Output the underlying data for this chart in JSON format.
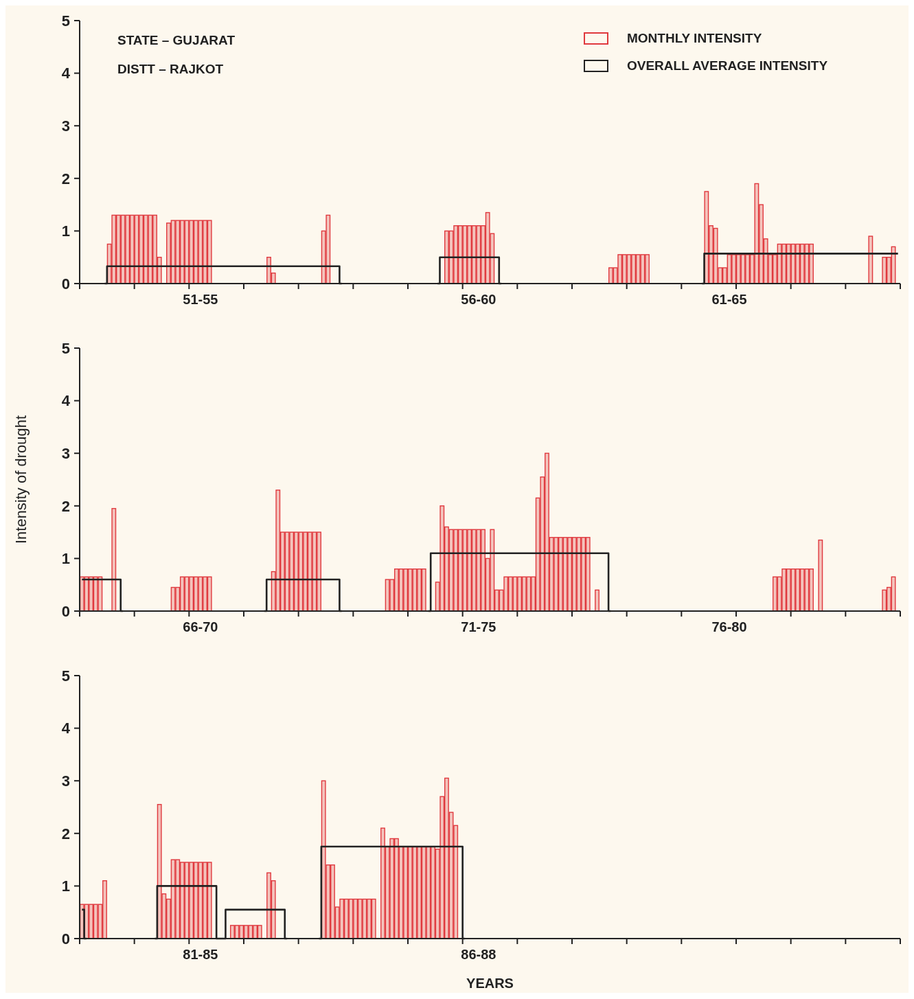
{
  "chart_data": [
    {
      "type": "bar",
      "annotations": [
        "STATE – GUJARAT",
        "DISTT – RAJKOT"
      ],
      "legend": "top right",
      "ylim": [
        0,
        5
      ],
      "yticks": [
        0,
        1,
        2,
        3,
        4,
        5
      ],
      "categories": [
        null,
        null,
        null,
        null,
        null,
        null,
        null,
        null,
        null,
        null,
        null,
        null,
        null,
        null,
        null,
        null,
        null,
        null,
        null,
        null,
        null,
        null,
        null,
        null,
        null,
        null,
        "51-55",
        null,
        null,
        null,
        null,
        null,
        null,
        null,
        null,
        null,
        null,
        null,
        null,
        null,
        null,
        null,
        null,
        null,
        null,
        null,
        null,
        null,
        null,
        null,
        null,
        null,
        null,
        null,
        null,
        null,
        null,
        null,
        null,
        null,
        null,
        null,
        null,
        null,
        null,
        null,
        null,
        null,
        null,
        null,
        null,
        null,
        null,
        null,
        null,
        null,
        null,
        null,
        null,
        null,
        null,
        null,
        null,
        null,
        null,
        null,
        null,
        "56-60",
        null,
        null,
        null,
        null,
        null,
        null,
        null,
        null,
        null,
        null,
        null,
        null,
        null,
        null,
        null,
        null,
        null,
        null,
        null,
        null,
        null,
        null,
        null,
        null,
        null,
        null,
        null,
        null,
        null,
        null,
        null,
        null,
        null,
        null,
        null,
        null,
        null,
        null,
        null,
        null,
        null,
        null,
        null,
        null,
        null,
        null,
        null,
        null,
        null,
        null,
        null,
        null,
        null,
        null,
        "61-65",
        null,
        null,
        null,
        null,
        null,
        null,
        null,
        null,
        null,
        null,
        null,
        null,
        null,
        null,
        null,
        null,
        null,
        null,
        null,
        null,
        null,
        null,
        null,
        null,
        null,
        null,
        null,
        null,
        null,
        null,
        null,
        null,
        null,
        null,
        null,
        null,
        null
      ],
      "series": [
        {
          "name": "MONTHLY INTENSITY",
          "color": "#e0393e",
          "values": [
            null,
            null,
            null,
            null,
            null,
            null,
            0.75,
            1.3,
            1.3,
            1.3,
            1.3,
            1.3,
            1.3,
            1.3,
            1.3,
            1.3,
            1.3,
            0.5,
            null,
            1.15,
            1.2,
            1.2,
            1.2,
            1.2,
            1.2,
            1.2,
            1.2,
            1.2,
            1.2,
            null,
            null,
            null,
            null,
            null,
            null,
            null,
            null,
            null,
            null,
            null,
            null,
            0.5,
            0.2,
            null,
            null,
            null,
            null,
            null,
            null,
            null,
            null,
            null,
            null,
            1.0,
            1.3,
            null,
            null,
            null,
            null,
            null,
            null,
            null,
            null,
            null,
            null,
            null,
            null,
            null,
            null,
            null,
            null,
            null,
            null,
            null,
            null,
            null,
            null,
            null,
            null,
            null,
            1.0,
            1.0,
            1.1,
            1.1,
            1.1,
            1.1,
            1.1,
            1.1,
            1.1,
            1.35,
            0.95,
            null,
            null,
            null,
            null,
            null,
            null,
            null,
            null,
            null,
            null,
            null,
            null,
            null,
            null,
            null,
            null,
            null,
            null,
            null,
            null,
            null,
            null,
            null,
            null,
            null,
            0.3,
            0.3,
            0.55,
            0.55,
            0.55,
            0.55,
            0.55,
            0.55,
            0.55,
            null,
            null,
            null,
            null,
            null,
            null,
            null,
            null,
            null,
            null,
            null,
            null,
            1.75,
            1.1,
            1.05,
            0.3,
            0.3,
            0.55,
            0.55,
            0.55,
            0.55,
            0.55,
            0.55,
            1.9,
            1.5,
            0.85,
            0.55,
            0.55,
            0.75,
            0.75,
            0.75,
            0.75,
            0.75,
            0.75,
            0.75,
            0.75,
            null,
            null,
            null,
            null,
            null,
            null,
            null,
            null,
            null,
            null,
            null,
            null,
            0.9,
            null,
            null,
            0.5,
            0.5,
            0.7,
            null
          ]
        },
        {
          "name": "OVERALL AVERAGE INTENSITY",
          "type": "step",
          "color": "#222222",
          "values": [
            null,
            null,
            null,
            null,
            null,
            0,
            0.33,
            0.33,
            0.33,
            0.33,
            0.33,
            0.33,
            0.33,
            0.33,
            0.33,
            0.33,
            0.33,
            0.33,
            0.33,
            0.33,
            0.33,
            0.33,
            0.33,
            0.33,
            0.33,
            0.33,
            0.33,
            0.33,
            0.33,
            0.33,
            0.33,
            0.33,
            0.33,
            0.33,
            0.33,
            0.33,
            0.33,
            0.33,
            0.33,
            0.33,
            0.33,
            0.33,
            0.33,
            0.33,
            0.33,
            0.33,
            0.33,
            0.33,
            0.33,
            0.33,
            0.33,
            0.33,
            0.33,
            0.33,
            0.33,
            0.33,
            0.33,
            0,
            null,
            null,
            null,
            null,
            null,
            null,
            null,
            null,
            null,
            null,
            null,
            null,
            null,
            null,
            null,
            null,
            null,
            null,
            null,
            null,
            0,
            0.5,
            0.5,
            0.5,
            0.5,
            0.5,
            0.5,
            0.5,
            0.5,
            0.5,
            0.5,
            0.5,
            0.5,
            0.5,
            0,
            null,
            null,
            null,
            null,
            null,
            null,
            null,
            null,
            null,
            null,
            null,
            null,
            null,
            null,
            null,
            null,
            null,
            null,
            null,
            null,
            null,
            null,
            null,
            null,
            null,
            null,
            null,
            null,
            null,
            null,
            null,
            null,
            null,
            null,
            null,
            null,
            null,
            null,
            null,
            null,
            null,
            null,
            null,
            0,
            0.57,
            0.57,
            0.57,
            0.57,
            0.57,
            0.57,
            0.57,
            0.57,
            0.57,
            0.57,
            0.57,
            0.57,
            0.57,
            0.57,
            0.57,
            0.57,
            0.57,
            0.57,
            0.57,
            0.57,
            0.57,
            0.57,
            0.57,
            0.57,
            0.57,
            0.57,
            0.57,
            0.57,
            0.57,
            0.57,
            0.57,
            0.57,
            0.57,
            0.57,
            0.57,
            0.57,
            0.57,
            0.57,
            0.57,
            0.57,
            0.57,
            0.57,
            0.57
          ]
        }
      ]
    },
    {
      "type": "bar",
      "ylabel": "Intensity of drought",
      "ylim": [
        0,
        5
      ],
      "yticks": [
        0,
        1,
        2,
        3,
        4,
        5
      ],
      "categories": [
        null,
        null,
        null,
        null,
        null,
        null,
        null,
        null,
        null,
        null,
        null,
        null,
        null,
        null,
        null,
        null,
        null,
        null,
        null,
        null,
        null,
        null,
        null,
        null,
        null,
        null,
        "66-70",
        null,
        null,
        null,
        null,
        null,
        null,
        null,
        null,
        null,
        null,
        null,
        null,
        null,
        null,
        null,
        null,
        null,
        null,
        null,
        null,
        null,
        null,
        null,
        null,
        null,
        null,
        null,
        null,
        null,
        null,
        null,
        null,
        null,
        null,
        null,
        null,
        null,
        null,
        null,
        null,
        null,
        null,
        null,
        null,
        null,
        null,
        null,
        null,
        null,
        null,
        null,
        null,
        null,
        null,
        null,
        null,
        null,
        null,
        null,
        null,
        "71-75",
        null,
        null,
        null,
        null,
        null,
        null,
        null,
        null,
        null,
        null,
        null,
        null,
        null,
        null,
        null,
        null,
        null,
        null,
        null,
        null,
        null,
        null,
        null,
        null,
        null,
        null,
        null,
        null,
        null,
        null,
        null,
        null,
        null,
        null,
        null,
        null,
        null,
        null,
        null,
        null,
        null,
        null,
        null,
        null,
        null,
        null,
        null,
        null,
        null,
        null,
        null,
        null,
        null,
        null,
        "76-80",
        null,
        null,
        null,
        null,
        null,
        null,
        null,
        null,
        null,
        null,
        null,
        null,
        null,
        null,
        null,
        null,
        null,
        null,
        null,
        null,
        null,
        null,
        null,
        null,
        null,
        null,
        null,
        null,
        null,
        null,
        null,
        null,
        null,
        null,
        null,
        null,
        null
      ],
      "series": [
        {
          "color": "#e0393e",
          "values": [
            0.65,
            0.65,
            0.65,
            0.65,
            0.65,
            null,
            null,
            1.95,
            null,
            null,
            null,
            null,
            null,
            null,
            null,
            null,
            null,
            null,
            null,
            null,
            0.45,
            0.45,
            0.65,
            0.65,
            0.65,
            0.65,
            0.65,
            0.65,
            0.65,
            null,
            null,
            null,
            null,
            null,
            null,
            null,
            null,
            null,
            null,
            null,
            null,
            null,
            0.75,
            2.3,
            1.5,
            1.5,
            1.5,
            1.5,
            1.5,
            1.5,
            1.5,
            1.5,
            1.5,
            null,
            null,
            null,
            null,
            null,
            null,
            null,
            null,
            null,
            null,
            null,
            null,
            null,
            null,
            0.6,
            0.6,
            0.8,
            0.8,
            0.8,
            0.8,
            0.8,
            0.8,
            0.8,
            null,
            null,
            0.55,
            2.0,
            1.6,
            1.55,
            1.55,
            1.55,
            1.55,
            1.55,
            1.55,
            1.55,
            1.55,
            1.0,
            1.55,
            0.4,
            0.4,
            0.65,
            0.65,
            0.65,
            0.65,
            0.65,
            0.65,
            0.65,
            2.15,
            2.55,
            3.0,
            1.4,
            1.4,
            1.4,
            1.4,
            1.4,
            1.4,
            1.4,
            1.4,
            1.4,
            null,
            0.4,
            null,
            null,
            null,
            null,
            null,
            null,
            null,
            null,
            null,
            null,
            null,
            null,
            null,
            null,
            null,
            null,
            null,
            null,
            null,
            null,
            null,
            null,
            null,
            null,
            null,
            null,
            null,
            null,
            null,
            null,
            null,
            null,
            null,
            null,
            null,
            null,
            null,
            null,
            0.65,
            0.65,
            0.8,
            0.8,
            0.8,
            0.8,
            0.8,
            0.8,
            0.8,
            null,
            1.35,
            null,
            null,
            null,
            null,
            null,
            null,
            null,
            null,
            null,
            null,
            null,
            null,
            null,
            0.4,
            0.45,
            0.65,
            null
          ]
        },
        {
          "type": "step",
          "color": "#222222",
          "values": [
            0.6,
            0.6,
            0.6,
            0.6,
            0.6,
            0.6,
            0.6,
            0.6,
            0.6,
            0,
            null,
            null,
            null,
            null,
            null,
            null,
            null,
            null,
            null,
            null,
            null,
            null,
            null,
            null,
            null,
            null,
            null,
            null,
            null,
            null,
            null,
            null,
            null,
            null,
            null,
            null,
            null,
            null,
            null,
            null,
            0,
            0.6,
            0.6,
            0.6,
            0.6,
            0.6,
            0.6,
            0.6,
            0.6,
            0.6,
            0.6,
            0.6,
            0.6,
            0.6,
            0.6,
            0.6,
            0.6,
            0,
            null,
            null,
            null,
            null,
            null,
            null,
            null,
            null,
            null,
            null,
            null,
            null,
            null,
            null,
            null,
            null,
            null,
            null,
            0,
            1.1,
            1.1,
            1.1,
            1.1,
            1.1,
            1.1,
            1.1,
            1.1,
            1.1,
            1.1,
            1.1,
            1.1,
            1.1,
            1.1,
            1.1,
            1.1,
            1.1,
            1.1,
            1.1,
            1.1,
            1.1,
            1.1,
            1.1,
            1.1,
            1.1,
            1.1,
            1.1,
            1.1,
            1.1,
            1.1,
            1.1,
            1.1,
            1.1,
            1.1,
            1.1,
            1.1,
            1.1,
            1.1,
            1.1,
            0,
            null,
            null,
            null,
            null,
            null,
            null,
            null,
            null,
            null,
            null,
            null,
            null,
            null,
            null,
            null,
            null,
            null,
            null,
            null,
            null,
            null,
            null,
            null,
            null,
            null,
            null,
            null,
            null,
            null,
            null,
            null,
            null,
            null,
            null,
            null,
            null,
            null,
            null,
            null,
            null,
            null,
            null,
            null,
            null,
            null,
            null,
            null,
            null,
            null,
            null,
            null,
            null,
            null,
            null,
            null,
            null,
            null,
            null,
            null,
            null,
            null,
            null,
            null
          ]
        }
      ]
    },
    {
      "type": "bar",
      "xlabel": "YEARS",
      "ylim": [
        0,
        5
      ],
      "yticks": [
        0,
        1,
        2,
        3,
        4,
        5
      ],
      "categories": [
        null,
        null,
        null,
        null,
        null,
        null,
        null,
        null,
        null,
        null,
        null,
        null,
        null,
        null,
        null,
        null,
        null,
        null,
        null,
        null,
        null,
        null,
        null,
        null,
        null,
        null,
        "81-85",
        null,
        null,
        null,
        null,
        null,
        null,
        null,
        null,
        null,
        null,
        null,
        null,
        null,
        null,
        null,
        null,
        null,
        null,
        null,
        null,
        null,
        null,
        null,
        null,
        null,
        null,
        null,
        null,
        null,
        null,
        null,
        null,
        null,
        null,
        null,
        null,
        null,
        null,
        null,
        null,
        null,
        null,
        null,
        null,
        null,
        null,
        null,
        null,
        null,
        null,
        null,
        null,
        null,
        null,
        null,
        null,
        null,
        null,
        null,
        null,
        "86-88",
        null,
        null,
        null,
        null,
        null,
        null,
        null,
        null,
        null,
        null,
        null,
        null,
        null,
        null,
        null,
        null,
        null,
        null,
        null,
        null,
        null,
        null,
        null,
        null,
        null,
        null,
        null,
        null,
        null,
        null,
        null,
        null,
        null,
        null,
        null,
        null,
        null,
        null,
        null,
        null,
        null,
        null,
        null,
        null,
        null,
        null,
        null,
        null,
        null,
        null,
        null,
        null,
        null,
        null,
        null,
        null,
        null,
        null,
        null,
        null,
        null,
        null,
        null,
        null,
        null,
        null,
        null,
        null,
        null,
        null,
        null,
        null,
        null,
        null,
        null,
        null,
        null,
        null,
        null,
        null,
        null,
        null,
        null,
        null,
        null,
        null,
        null,
        null,
        null,
        null,
        null,
        null
      ],
      "series": [
        {
          "color": "#e0393e",
          "values": [
            0.65,
            0.65,
            0.65,
            0.65,
            0.65,
            1.1,
            null,
            null,
            null,
            null,
            null,
            null,
            null,
            null,
            null,
            null,
            null,
            2.55,
            0.85,
            0.75,
            1.5,
            1.5,
            1.45,
            1.45,
            1.45,
            1.45,
            1.45,
            1.45,
            1.45,
            null,
            null,
            null,
            null,
            0.25,
            0.25,
            0.25,
            0.25,
            0.25,
            0.25,
            0.25,
            null,
            1.25,
            1.1,
            null,
            null,
            null,
            null,
            null,
            null,
            null,
            null,
            null,
            null,
            3.0,
            1.4,
            1.4,
            0.6,
            0.75,
            0.75,
            0.75,
            0.75,
            0.75,
            0.75,
            0.75,
            0.75,
            null,
            2.1,
            1.75,
            1.9,
            1.9,
            1.75,
            1.75,
            1.75,
            1.75,
            1.75,
            1.75,
            1.75,
            1.75,
            1.7,
            2.7,
            3.05,
            2.4,
            2.15,
            null,
            null,
            null,
            null,
            null,
            null,
            null,
            null,
            null,
            null,
            null,
            null,
            null,
            null,
            null,
            null,
            null,
            null,
            null,
            null,
            null,
            null,
            null,
            null,
            null,
            null,
            null,
            null,
            null,
            null,
            null,
            null,
            null,
            null,
            null,
            null,
            null,
            null,
            null,
            null,
            null,
            null,
            null,
            null,
            null,
            null,
            null,
            null,
            null,
            null,
            null,
            null,
            null,
            null,
            null,
            null,
            null,
            null,
            null,
            null,
            null,
            null,
            null,
            null,
            null,
            null,
            null,
            null,
            null,
            null,
            null,
            null,
            null,
            null,
            null,
            null,
            null,
            null,
            null,
            null,
            null,
            null,
            null,
            null,
            null,
            null,
            null,
            null,
            null,
            null,
            null,
            null,
            null,
            null,
            null,
            null,
            null
          ]
        },
        {
          "type": "step",
          "color": "#222222",
          "values": [
            0.55,
            0,
            null,
            null,
            null,
            null,
            null,
            null,
            null,
            null,
            null,
            null,
            null,
            null,
            null,
            null,
            0,
            1.0,
            1.0,
            1.0,
            1.0,
            1.0,
            1.0,
            1.0,
            1.0,
            1.0,
            1.0,
            1.0,
            1.0,
            1.0,
            0,
            0,
            0.55,
            0.55,
            0.55,
            0.55,
            0.55,
            0.55,
            0.55,
            0.55,
            0.55,
            0.55,
            0.55,
            0.55,
            0.55,
            0,
            null,
            null,
            null,
            null,
            null,
            null,
            0,
            1.75,
            1.75,
            1.75,
            1.75,
            1.75,
            1.75,
            1.75,
            1.75,
            1.75,
            1.75,
            1.75,
            1.75,
            1.75,
            1.75,
            1.75,
            1.75,
            1.75,
            1.75,
            1.75,
            1.75,
            1.75,
            1.75,
            1.75,
            1.75,
            1.75,
            1.75,
            1.75,
            1.75,
            1.75,
            1.75,
            1.75,
            0,
            null,
            null,
            null,
            null,
            null,
            null,
            null,
            null,
            null,
            null,
            null,
            null,
            null,
            null,
            null,
            null,
            null,
            null,
            null,
            null,
            null,
            null,
            null,
            null,
            null,
            null,
            null,
            null,
            null,
            null,
            null,
            null,
            null,
            null,
            null,
            null,
            null,
            null,
            null,
            null,
            null,
            null,
            null,
            null,
            null,
            null,
            null,
            null,
            null,
            null,
            null,
            null,
            null,
            null,
            null,
            null,
            null,
            null,
            null,
            null,
            null,
            null,
            null,
            null,
            null,
            null,
            null,
            null,
            null,
            null,
            null,
            null,
            null,
            null,
            null,
            null,
            null,
            null,
            null,
            null,
            null,
            null,
            null,
            null,
            null,
            null,
            null,
            null,
            null,
            null,
            null,
            null,
            null,
            null,
            null
          ]
        }
      ]
    }
  ]
}
